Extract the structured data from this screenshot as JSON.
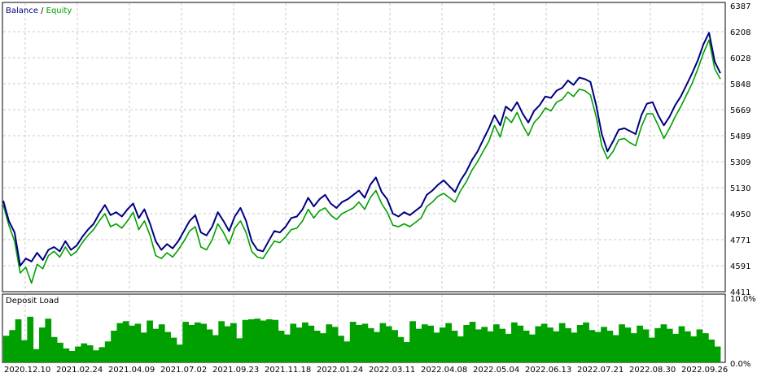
{
  "chart_data": [
    {
      "type": "line",
      "title": "",
      "legend": {
        "placement": "top-left",
        "items": [
          {
            "label": "Balance",
            "color": "#000080"
          },
          {
            "label": "Equity",
            "color": "#00A000"
          }
        ],
        "separator": " / "
      },
      "ylim": [
        4411,
        6387
      ],
      "yticks": [
        "6387",
        "6208",
        "6028",
        "5848",
        "5669",
        "5489",
        "5309",
        "5130",
        "4950",
        "4771",
        "4591",
        "4411"
      ],
      "grid": true,
      "series": [
        {
          "name": "Balance",
          "color": "#000080",
          "points": [
            [
              0,
              5040
            ],
            [
              1,
              4900
            ],
            [
              2,
              4820
            ],
            [
              3,
              4590
            ],
            [
              4,
              4640
            ],
            [
              5,
              4620
            ],
            [
              6,
              4680
            ],
            [
              7,
              4630
            ],
            [
              8,
              4700
            ],
            [
              9,
              4720
            ],
            [
              10,
              4690
            ],
            [
              11,
              4760
            ],
            [
              12,
              4700
            ],
            [
              13,
              4730
            ],
            [
              14,
              4790
            ],
            [
              15,
              4840
            ],
            [
              16,
              4880
            ],
            [
              17,
              4950
            ],
            [
              18,
              5010
            ],
            [
              19,
              4940
            ],
            [
              20,
              4960
            ],
            [
              21,
              4930
            ],
            [
              22,
              4980
            ],
            [
              23,
              5020
            ],
            [
              24,
              4920
            ],
            [
              25,
              4980
            ],
            [
              26,
              4880
            ],
            [
              27,
              4760
            ],
            [
              28,
              4700
            ],
            [
              29,
              4740
            ],
            [
              30,
              4710
            ],
            [
              31,
              4760
            ],
            [
              32,
              4830
            ],
            [
              33,
              4900
            ],
            [
              34,
              4940
            ],
            [
              35,
              4820
            ],
            [
              36,
              4800
            ],
            [
              37,
              4860
            ],
            [
              38,
              4960
            ],
            [
              39,
              4900
            ],
            [
              40,
              4830
            ],
            [
              41,
              4930
            ],
            [
              42,
              4990
            ],
            [
              43,
              4900
            ],
            [
              44,
              4760
            ],
            [
              45,
              4700
            ],
            [
              46,
              4690
            ],
            [
              47,
              4760
            ],
            [
              48,
              4830
            ],
            [
              49,
              4820
            ],
            [
              50,
              4860
            ],
            [
              51,
              4920
            ],
            [
              52,
              4930
            ],
            [
              53,
              4980
            ],
            [
              54,
              5060
            ],
            [
              55,
              5000
            ],
            [
              56,
              5050
            ],
            [
              57,
              5080
            ],
            [
              58,
              5020
            ],
            [
              59,
              4990
            ],
            [
              60,
              5030
            ],
            [
              61,
              5050
            ],
            [
              62,
              5080
            ],
            [
              63,
              5110
            ],
            [
              64,
              5060
            ],
            [
              65,
              5150
            ],
            [
              66,
              5200
            ],
            [
              67,
              5100
            ],
            [
              68,
              5050
            ],
            [
              69,
              4950
            ],
            [
              70,
              4930
            ],
            [
              71,
              4960
            ],
            [
              72,
              4940
            ],
            [
              73,
              4970
            ],
            [
              74,
              5000
            ],
            [
              75,
              5080
            ],
            [
              76,
              5110
            ],
            [
              77,
              5150
            ],
            [
              78,
              5180
            ],
            [
              79,
              5140
            ],
            [
              80,
              5100
            ],
            [
              81,
              5180
            ],
            [
              82,
              5240
            ],
            [
              83,
              5320
            ],
            [
              84,
              5380
            ],
            [
              85,
              5460
            ],
            [
              86,
              5540
            ],
            [
              87,
              5630
            ],
            [
              88,
              5560
            ],
            [
              89,
              5690
            ],
            [
              90,
              5660
            ],
            [
              91,
              5720
            ],
            [
              92,
              5640
            ],
            [
              93,
              5580
            ],
            [
              94,
              5660
            ],
            [
              95,
              5700
            ],
            [
              96,
              5760
            ],
            [
              97,
              5750
            ],
            [
              98,
              5800
            ],
            [
              99,
              5820
            ],
            [
              100,
              5870
            ],
            [
              101,
              5840
            ],
            [
              102,
              5890
            ],
            [
              103,
              5880
            ],
            [
              104,
              5860
            ],
            [
              105,
              5700
            ],
            [
              106,
              5500
            ],
            [
              107,
              5380
            ],
            [
              108,
              5450
            ],
            [
              109,
              5530
            ],
            [
              110,
              5540
            ],
            [
              111,
              5520
            ],
            [
              112,
              5500
            ],
            [
              113,
              5630
            ],
            [
              114,
              5710
            ],
            [
              115,
              5720
            ],
            [
              116,
              5630
            ],
            [
              117,
              5560
            ],
            [
              118,
              5620
            ],
            [
              119,
              5700
            ],
            [
              120,
              5760
            ],
            [
              121,
              5840
            ],
            [
              122,
              5920
            ],
            [
              123,
              6010
            ],
            [
              124,
              6120
            ],
            [
              125,
              6200
            ],
            [
              126,
              6000
            ],
            [
              127,
              5920
            ]
          ]
        },
        {
          "name": "Equity",
          "color": "#00A000",
          "points": [
            [
              0,
              5010
            ],
            [
              1,
              4870
            ],
            [
              2,
              4760
            ],
            [
              3,
              4540
            ],
            [
              4,
              4580
            ],
            [
              5,
              4470
            ],
            [
              6,
              4600
            ],
            [
              7,
              4570
            ],
            [
              8,
              4660
            ],
            [
              9,
              4690
            ],
            [
              10,
              4650
            ],
            [
              11,
              4720
            ],
            [
              12,
              4660
            ],
            [
              13,
              4690
            ],
            [
              14,
              4750
            ],
            [
              15,
              4800
            ],
            [
              16,
              4840
            ],
            [
              17,
              4900
            ],
            [
              18,
              4950
            ],
            [
              19,
              4860
            ],
            [
              20,
              4880
            ],
            [
              21,
              4850
            ],
            [
              22,
              4900
            ],
            [
              23,
              4960
            ],
            [
              24,
              4840
            ],
            [
              25,
              4900
            ],
            [
              26,
              4800
            ],
            [
              27,
              4660
            ],
            [
              28,
              4640
            ],
            [
              29,
              4680
            ],
            [
              30,
              4650
            ],
            [
              31,
              4700
            ],
            [
              32,
              4760
            ],
            [
              33,
              4830
            ],
            [
              34,
              4860
            ],
            [
              35,
              4720
            ],
            [
              36,
              4700
            ],
            [
              37,
              4770
            ],
            [
              38,
              4880
            ],
            [
              39,
              4820
            ],
            [
              40,
              4740
            ],
            [
              41,
              4850
            ],
            [
              42,
              4900
            ],
            [
              43,
              4820
            ],
            [
              44,
              4690
            ],
            [
              45,
              4650
            ],
            [
              46,
              4640
            ],
            [
              47,
              4700
            ],
            [
              48,
              4760
            ],
            [
              49,
              4750
            ],
            [
              50,
              4790
            ],
            [
              51,
              4840
            ],
            [
              52,
              4850
            ],
            [
              53,
              4900
            ],
            [
              54,
              4980
            ],
            [
              55,
              4920
            ],
            [
              56,
              4970
            ],
            [
              57,
              4990
            ],
            [
              58,
              4940
            ],
            [
              59,
              4910
            ],
            [
              60,
              4950
            ],
            [
              61,
              4970
            ],
            [
              62,
              4990
            ],
            [
              63,
              5030
            ],
            [
              64,
              4980
            ],
            [
              65,
              5060
            ],
            [
              66,
              5110
            ],
            [
              67,
              5020
            ],
            [
              68,
              4960
            ],
            [
              69,
              4870
            ],
            [
              70,
              4860
            ],
            [
              71,
              4880
            ],
            [
              72,
              4860
            ],
            [
              73,
              4890
            ],
            [
              74,
              4920
            ],
            [
              75,
              5000
            ],
            [
              76,
              5030
            ],
            [
              77,
              5070
            ],
            [
              78,
              5090
            ],
            [
              79,
              5060
            ],
            [
              80,
              5030
            ],
            [
              81,
              5110
            ],
            [
              82,
              5170
            ],
            [
              83,
              5250
            ],
            [
              84,
              5310
            ],
            [
              85,
              5380
            ],
            [
              86,
              5450
            ],
            [
              87,
              5560
            ],
            [
              88,
              5480
            ],
            [
              89,
              5620
            ],
            [
              90,
              5580
            ],
            [
              91,
              5650
            ],
            [
              92,
              5560
            ],
            [
              93,
              5490
            ],
            [
              94,
              5580
            ],
            [
              95,
              5620
            ],
            [
              96,
              5680
            ],
            [
              97,
              5660
            ],
            [
              98,
              5720
            ],
            [
              99,
              5740
            ],
            [
              100,
              5790
            ],
            [
              101,
              5760
            ],
            [
              102,
              5810
            ],
            [
              103,
              5800
            ],
            [
              104,
              5770
            ],
            [
              105,
              5620
            ],
            [
              106,
              5420
            ],
            [
              107,
              5330
            ],
            [
              108,
              5380
            ],
            [
              109,
              5460
            ],
            [
              110,
              5470
            ],
            [
              111,
              5440
            ],
            [
              112,
              5420
            ],
            [
              113,
              5550
            ],
            [
              114,
              5640
            ],
            [
              115,
              5640
            ],
            [
              116,
              5560
            ],
            [
              117,
              5470
            ],
            [
              118,
              5540
            ],
            [
              119,
              5620
            ],
            [
              120,
              5690
            ],
            [
              121,
              5770
            ],
            [
              122,
              5850
            ],
            [
              123,
              5950
            ],
            [
              124,
              6060
            ],
            [
              125,
              6150
            ],
            [
              126,
              5950
            ],
            [
              127,
              5880
            ]
          ]
        }
      ]
    },
    {
      "type": "bar",
      "title": "Deposit Load",
      "ylim": [
        0,
        10.0
      ],
      "yticks": [
        "10.0%",
        "0.0%"
      ],
      "grid": true,
      "color": "#00A000",
      "values": [
        4.2,
        5.1,
        6.8,
        3.5,
        7.2,
        2.1,
        5.5,
        6.9,
        4.0,
        3.1,
        2.2,
        1.8,
        2.5,
        3.0,
        2.7,
        1.9,
        2.4,
        3.3,
        5.0,
        6.2,
        6.5,
        5.8,
        6.1,
        4.7,
        6.6,
        5.3,
        6.0,
        4.8,
        3.9,
        2.8,
        6.4,
        5.9,
        6.3,
        6.1,
        5.2,
        4.3,
        6.5,
        5.7,
        6.2,
        3.8,
        6.7,
        6.8,
        6.9,
        6.6,
        6.8,
        6.7,
        5.0,
        4.4,
        6.1,
        5.5,
        6.3,
        5.8,
        5.0,
        4.6,
        6.0,
        5.6,
        4.2,
        3.3,
        6.4,
        5.9,
        6.1,
        5.4,
        4.8,
        6.2,
        5.7,
        5.1,
        4.0,
        3.2,
        6.5,
        5.3,
        6.0,
        5.8,
        4.7,
        5.5,
        6.2,
        5.0,
        4.1,
        5.9,
        6.4,
        5.2,
        5.6,
        4.9,
        6.0,
        5.3,
        4.5,
        6.3,
        5.8,
        5.0,
        4.4,
        5.7,
        6.1,
        5.5,
        4.9,
        6.2,
        5.4,
        4.7,
        5.9,
        6.3,
        5.1,
        4.8,
        5.6,
        5.0,
        4.3,
        6.0,
        5.5,
        4.6,
        5.8,
        5.2,
        3.9,
        5.4,
        6.0,
        5.3,
        4.5,
        5.7,
        4.9,
        4.1,
        5.2,
        4.6,
        3.6,
        2.5
      ]
    }
  ],
  "x_axis": {
    "ticks": [
      "2020.12.10",
      "2021.02.24",
      "2021.04.09",
      "2021.07.02",
      "2021.09.23",
      "2021.11.18",
      "2022.01.24",
      "2022.03.11",
      "2022.04.08",
      "2022.05.04",
      "2022.06.13",
      "2022.07.21",
      "2022.08.30",
      "2022.09.26"
    ]
  }
}
